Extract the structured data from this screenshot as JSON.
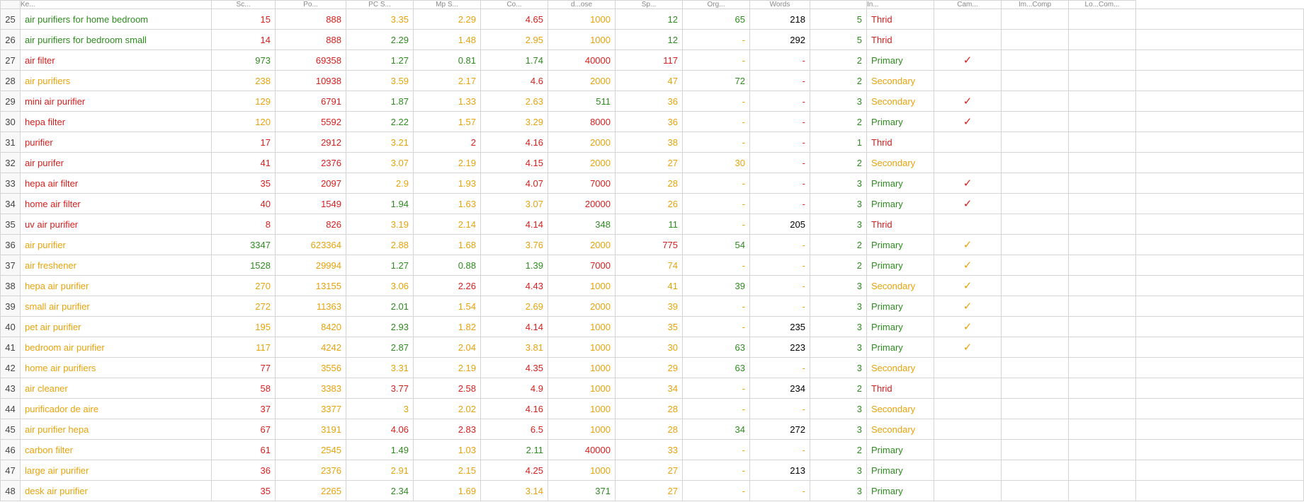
{
  "colors": {
    "green": "#2e8b1f",
    "red": "#d6201d",
    "orange": "#e8a30b",
    "grid": "#d4d4d4",
    "selection": "#1a7f3a"
  },
  "headers": [
    "",
    "Ke...",
    "Sc...",
    "Po...",
    "PC S...",
    "Mp S...",
    "Co...",
    "d...ose",
    "Sp...",
    "Org...",
    "Words",
    "",
    "In...",
    "Cam...",
    "Im...Comp",
    "Lo...Com..."
  ],
  "selected_cell": {
    "row_index": 20,
    "col": 14
  },
  "rows": [
    {
      "n": 25,
      "kw": "air purifiers for home bedroom",
      "kw_c": "green",
      "v3": "15",
      "v3c": "red",
      "v4": "888",
      "v4c": "red",
      "v5": "3.35",
      "v5c": "orange",
      "v6": "2.29",
      "v6c": "orange",
      "v7": "4.65",
      "v7c": "red",
      "v8": "1000",
      "v8c": "orange",
      "v9": "12",
      "v9c": "green",
      "v10": "65",
      "v10c": "green",
      "v11": "218",
      "v11c": "black",
      "v12": "5",
      "v12c": "green",
      "v13": "Thrid",
      "v13c": "red",
      "v14": "",
      "v14c": ""
    },
    {
      "n": 26,
      "kw": "air purifiers for bedroom small",
      "kw_c": "green",
      "v3": "14",
      "v3c": "red",
      "v4": "888",
      "v4c": "red",
      "v5": "2.29",
      "v5c": "green",
      "v6": "1.48",
      "v6c": "orange",
      "v7": "2.95",
      "v7c": "orange",
      "v8": "1000",
      "v8c": "orange",
      "v9": "12",
      "v9c": "green",
      "v10": "-",
      "v10c": "orange",
      "v11": "292",
      "v11c": "black",
      "v12": "5",
      "v12c": "green",
      "v13": "Thrid",
      "v13c": "red",
      "v14": "",
      "v14c": ""
    },
    {
      "n": 27,
      "kw": "air filter",
      "kw_c": "red",
      "v3": "973",
      "v3c": "green",
      "v4": "69358",
      "v4c": "red",
      "v5": "1.27",
      "v5c": "green",
      "v6": "0.81",
      "v6c": "green",
      "v7": "1.74",
      "v7c": "green",
      "v8": "40000",
      "v8c": "red",
      "v9": "117",
      "v9c": "red",
      "v10": "-",
      "v10c": "orange",
      "v11": "-",
      "v11c": "red",
      "v12": "2",
      "v12c": "green",
      "v13": "Primary",
      "v13c": "green",
      "v14": "✓",
      "v14c": "check-red"
    },
    {
      "n": 28,
      "kw": "air purifiers",
      "kw_c": "orange",
      "v3": "238",
      "v3c": "orange",
      "v4": "10938",
      "v4c": "red",
      "v5": "3.59",
      "v5c": "orange",
      "v6": "2.17",
      "v6c": "orange",
      "v7": "4.6",
      "v7c": "red",
      "v8": "2000",
      "v8c": "orange",
      "v9": "47",
      "v9c": "orange",
      "v10": "72",
      "v10c": "green",
      "v11": "-",
      "v11c": "red",
      "v12": "2",
      "v12c": "green",
      "v13": "Secondary",
      "v13c": "orange",
      "v14": "",
      "v14c": ""
    },
    {
      "n": 29,
      "kw": "mini air purifier",
      "kw_c": "red",
      "v3": "129",
      "v3c": "orange",
      "v4": "6791",
      "v4c": "red",
      "v5": "1.87",
      "v5c": "green",
      "v6": "1.33",
      "v6c": "orange",
      "v7": "2.63",
      "v7c": "orange",
      "v8": "511",
      "v8c": "green",
      "v9": "36",
      "v9c": "orange",
      "v10": "-",
      "v10c": "orange",
      "v11": "-",
      "v11c": "red",
      "v12": "3",
      "v12c": "green",
      "v13": "Secondary",
      "v13c": "orange",
      "v14": "✓",
      "v14c": "check-red"
    },
    {
      "n": 30,
      "kw": "hepa filter",
      "kw_c": "red",
      "v3": "120",
      "v3c": "orange",
      "v4": "5592",
      "v4c": "red",
      "v5": "2.22",
      "v5c": "green",
      "v6": "1.57",
      "v6c": "orange",
      "v7": "3.29",
      "v7c": "orange",
      "v8": "8000",
      "v8c": "red",
      "v9": "36",
      "v9c": "orange",
      "v10": "-",
      "v10c": "orange",
      "v11": "-",
      "v11c": "red",
      "v12": "2",
      "v12c": "green",
      "v13": "Primary",
      "v13c": "green",
      "v14": "✓",
      "v14c": "check-red"
    },
    {
      "n": 31,
      "kw": "purifier",
      "kw_c": "red",
      "v3": "17",
      "v3c": "red",
      "v4": "2912",
      "v4c": "red",
      "v5": "3.21",
      "v5c": "orange",
      "v6": "2",
      "v6c": "red",
      "v7": "4.16",
      "v7c": "red",
      "v8": "2000",
      "v8c": "orange",
      "v9": "38",
      "v9c": "orange",
      "v10": "-",
      "v10c": "orange",
      "v11": "-",
      "v11c": "red",
      "v12": "1",
      "v12c": "green",
      "v13": "Thrid",
      "v13c": "red",
      "v14": "",
      "v14c": ""
    },
    {
      "n": 32,
      "kw": "air purifer",
      "kw_c": "red",
      "v3": "41",
      "v3c": "red",
      "v4": "2376",
      "v4c": "red",
      "v5": "3.07",
      "v5c": "orange",
      "v6": "2.19",
      "v6c": "orange",
      "v7": "4.15",
      "v7c": "red",
      "v8": "2000",
      "v8c": "orange",
      "v9": "27",
      "v9c": "orange",
      "v10": "30",
      "v10c": "orange",
      "v11": "-",
      "v11c": "red",
      "v12": "2",
      "v12c": "green",
      "v13": "Secondary",
      "v13c": "orange",
      "v14": "",
      "v14c": ""
    },
    {
      "n": 33,
      "kw": "hepa air filter",
      "kw_c": "red",
      "v3": "35",
      "v3c": "red",
      "v4": "2097",
      "v4c": "red",
      "v5": "2.9",
      "v5c": "orange",
      "v6": "1.93",
      "v6c": "orange",
      "v7": "4.07",
      "v7c": "red",
      "v8": "7000",
      "v8c": "red",
      "v9": "28",
      "v9c": "orange",
      "v10": "-",
      "v10c": "orange",
      "v11": "-",
      "v11c": "red",
      "v12": "3",
      "v12c": "green",
      "v13": "Primary",
      "v13c": "green",
      "v14": "✓",
      "v14c": "check-red"
    },
    {
      "n": 34,
      "kw": "home air filter",
      "kw_c": "red",
      "v3": "40",
      "v3c": "red",
      "v4": "1549",
      "v4c": "red",
      "v5": "1.94",
      "v5c": "green",
      "v6": "1.63",
      "v6c": "orange",
      "v7": "3.07",
      "v7c": "orange",
      "v8": "20000",
      "v8c": "red",
      "v9": "26",
      "v9c": "orange",
      "v10": "-",
      "v10c": "orange",
      "v11": "-",
      "v11c": "red",
      "v12": "3",
      "v12c": "green",
      "v13": "Primary",
      "v13c": "green",
      "v14": "✓",
      "v14c": "check-red"
    },
    {
      "n": 35,
      "kw": "uv air purifier",
      "kw_c": "red",
      "v3": "8",
      "v3c": "red",
      "v4": "826",
      "v4c": "red",
      "v5": "3.19",
      "v5c": "orange",
      "v6": "2.14",
      "v6c": "orange",
      "v7": "4.14",
      "v7c": "red",
      "v8": "348",
      "v8c": "green",
      "v9": "11",
      "v9c": "green",
      "v10": "-",
      "v10c": "orange",
      "v11": "205",
      "v11c": "black",
      "v12": "3",
      "v12c": "green",
      "v13": "Thrid",
      "v13c": "red",
      "v14": "",
      "v14c": ""
    },
    {
      "n": 36,
      "kw": "air purifier",
      "kw_c": "orange",
      "v3": "3347",
      "v3c": "green",
      "v4": "623364",
      "v4c": "orange",
      "v5": "2.88",
      "v5c": "orange",
      "v6": "1.68",
      "v6c": "orange",
      "v7": "3.76",
      "v7c": "orange",
      "v8": "2000",
      "v8c": "orange",
      "v9": "775",
      "v9c": "red",
      "v10": "54",
      "v10c": "green",
      "v11": "-",
      "v11c": "orange",
      "v12": "2",
      "v12c": "green",
      "v13": "Primary",
      "v13c": "green",
      "v14": "✓",
      "v14c": "check-orange"
    },
    {
      "n": 37,
      "kw": "air freshener",
      "kw_c": "orange",
      "v3": "1528",
      "v3c": "green",
      "v4": "29994",
      "v4c": "orange",
      "v5": "1.27",
      "v5c": "green",
      "v6": "0.88",
      "v6c": "green",
      "v7": "1.39",
      "v7c": "green",
      "v8": "7000",
      "v8c": "red",
      "v9": "74",
      "v9c": "orange",
      "v10": "-",
      "v10c": "orange",
      "v11": "-",
      "v11c": "orange",
      "v12": "2",
      "v12c": "green",
      "v13": "Primary",
      "v13c": "green",
      "v14": "✓",
      "v14c": "check-orange"
    },
    {
      "n": 38,
      "kw": "hepa air purifier",
      "kw_c": "orange",
      "v3": "270",
      "v3c": "orange",
      "v4": "13155",
      "v4c": "orange",
      "v5": "3.06",
      "v5c": "orange",
      "v6": "2.26",
      "v6c": "red",
      "v7": "4.43",
      "v7c": "red",
      "v8": "1000",
      "v8c": "orange",
      "v9": "41",
      "v9c": "orange",
      "v10": "39",
      "v10c": "green",
      "v11": "-",
      "v11c": "orange",
      "v12": "3",
      "v12c": "green",
      "v13": "Secondary",
      "v13c": "orange",
      "v14": "✓",
      "v14c": "check-orange"
    },
    {
      "n": 39,
      "kw": "small air purifier",
      "kw_c": "orange",
      "v3": "272",
      "v3c": "orange",
      "v4": "11363",
      "v4c": "orange",
      "v5": "2.01",
      "v5c": "green",
      "v6": "1.54",
      "v6c": "orange",
      "v7": "2.69",
      "v7c": "orange",
      "v8": "2000",
      "v8c": "orange",
      "v9": "39",
      "v9c": "orange",
      "v10": "-",
      "v10c": "orange",
      "v11": "-",
      "v11c": "orange",
      "v12": "3",
      "v12c": "green",
      "v13": "Primary",
      "v13c": "green",
      "v14": "✓",
      "v14c": "check-orange"
    },
    {
      "n": 40,
      "kw": "pet air purifier",
      "kw_c": "orange",
      "v3": "195",
      "v3c": "orange",
      "v4": "8420",
      "v4c": "orange",
      "v5": "2.93",
      "v5c": "green",
      "v6": "1.82",
      "v6c": "orange",
      "v7": "4.14",
      "v7c": "red",
      "v8": "1000",
      "v8c": "orange",
      "v9": "35",
      "v9c": "orange",
      "v10": "-",
      "v10c": "orange",
      "v11": "235",
      "v11c": "black",
      "v12": "3",
      "v12c": "green",
      "v13": "Primary",
      "v13c": "green",
      "v14": "✓",
      "v14c": "check-orange"
    },
    {
      "n": 41,
      "kw": "bedroom air purifier",
      "kw_c": "orange",
      "v3": "117",
      "v3c": "orange",
      "v4": "4242",
      "v4c": "orange",
      "v5": "2.87",
      "v5c": "green",
      "v6": "2.04",
      "v6c": "orange",
      "v7": "3.81",
      "v7c": "orange",
      "v8": "1000",
      "v8c": "orange",
      "v9": "30",
      "v9c": "orange",
      "v10": "63",
      "v10c": "green",
      "v11": "223",
      "v11c": "black",
      "v12": "3",
      "v12c": "green",
      "v13": "Primary",
      "v13c": "green",
      "v14": "✓",
      "v14c": "check-orange"
    },
    {
      "n": 42,
      "kw": "home air purifiers",
      "kw_c": "orange",
      "v3": "77",
      "v3c": "red",
      "v4": "3556",
      "v4c": "orange",
      "v5": "3.31",
      "v5c": "orange",
      "v6": "2.19",
      "v6c": "orange",
      "v7": "4.35",
      "v7c": "red",
      "v8": "1000",
      "v8c": "orange",
      "v9": "29",
      "v9c": "orange",
      "v10": "63",
      "v10c": "green",
      "v11": "-",
      "v11c": "orange",
      "v12": "3",
      "v12c": "green",
      "v13": "Secondary",
      "v13c": "orange",
      "v14": "",
      "v14c": ""
    },
    {
      "n": 43,
      "kw": "air cleaner",
      "kw_c": "orange",
      "v3": "58",
      "v3c": "red",
      "v4": "3383",
      "v4c": "orange",
      "v5": "3.77",
      "v5c": "red",
      "v6": "2.58",
      "v6c": "red",
      "v7": "4.9",
      "v7c": "red",
      "v8": "1000",
      "v8c": "orange",
      "v9": "34",
      "v9c": "orange",
      "v10": "-",
      "v10c": "orange",
      "v11": "234",
      "v11c": "black",
      "v12": "2",
      "v12c": "green",
      "v13": "Thrid",
      "v13c": "red",
      "v14": "",
      "v14c": ""
    },
    {
      "n": 44,
      "kw": "purificador de aire",
      "kw_c": "orange",
      "v3": "37",
      "v3c": "red",
      "v4": "3377",
      "v4c": "orange",
      "v5": "3",
      "v5c": "orange",
      "v6": "2.02",
      "v6c": "orange",
      "v7": "4.16",
      "v7c": "red",
      "v8": "1000",
      "v8c": "orange",
      "v9": "28",
      "v9c": "orange",
      "v10": "-",
      "v10c": "orange",
      "v11": "-",
      "v11c": "orange",
      "v12": "3",
      "v12c": "green",
      "v13": "Secondary",
      "v13c": "orange",
      "v14": "",
      "v14c": ""
    },
    {
      "n": 45,
      "kw": "air purifier hepa",
      "kw_c": "orange",
      "v3": "67",
      "v3c": "red",
      "v4": "3191",
      "v4c": "orange",
      "v5": "4.06",
      "v5c": "red",
      "v6": "2.83",
      "v6c": "red",
      "v7": "6.5",
      "v7c": "red",
      "v8": "1000",
      "v8c": "orange",
      "v9": "28",
      "v9c": "orange",
      "v10": "34",
      "v10c": "green",
      "v11": "272",
      "v11c": "black",
      "v12": "3",
      "v12c": "green",
      "v13": "Secondary",
      "v13c": "orange",
      "v14": "",
      "v14c": ""
    },
    {
      "n": 46,
      "kw": "carbon filter",
      "kw_c": "orange",
      "v3": "61",
      "v3c": "red",
      "v4": "2545",
      "v4c": "orange",
      "v5": "1.49",
      "v5c": "green",
      "v6": "1.03",
      "v6c": "orange",
      "v7": "2.11",
      "v7c": "green",
      "v8": "40000",
      "v8c": "red",
      "v9": "33",
      "v9c": "orange",
      "v10": "-",
      "v10c": "orange",
      "v11": "-",
      "v11c": "orange",
      "v12": "2",
      "v12c": "green",
      "v13": "Primary",
      "v13c": "green",
      "v14": "",
      "v14c": ""
    },
    {
      "n": 47,
      "kw": "large air purifier",
      "kw_c": "orange",
      "v3": "36",
      "v3c": "red",
      "v4": "2376",
      "v4c": "orange",
      "v5": "2.91",
      "v5c": "orange",
      "v6": "2.15",
      "v6c": "orange",
      "v7": "4.25",
      "v7c": "red",
      "v8": "1000",
      "v8c": "orange",
      "v9": "27",
      "v9c": "orange",
      "v10": "-",
      "v10c": "orange",
      "v11": "213",
      "v11c": "black",
      "v12": "3",
      "v12c": "green",
      "v13": "Primary",
      "v13c": "green",
      "v14": "",
      "v14c": ""
    },
    {
      "n": 48,
      "kw": "desk air purifier",
      "kw_c": "orange",
      "v3": "35",
      "v3c": "red",
      "v4": "2265",
      "v4c": "orange",
      "v5": "2.34",
      "v5c": "green",
      "v6": "1.69",
      "v6c": "orange",
      "v7": "3.14",
      "v7c": "orange",
      "v8": "371",
      "v8c": "green",
      "v9": "27",
      "v9c": "orange",
      "v10": "-",
      "v10c": "orange",
      "v11": "-",
      "v11c": "orange",
      "v12": "3",
      "v12c": "green",
      "v13": "Primary",
      "v13c": "green",
      "v14": "",
      "v14c": ""
    }
  ]
}
